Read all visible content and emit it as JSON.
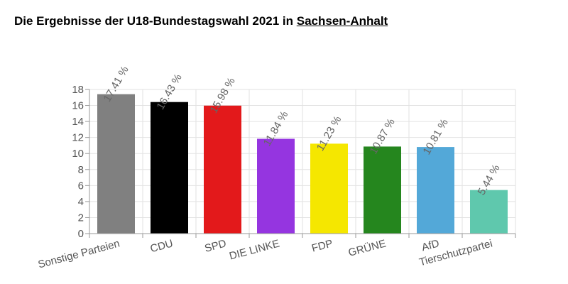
{
  "title": {
    "prefix": "Die Ergebnisse der U18-Bundestagswahl 2021 in ",
    "region": "Sachsen-Anhalt"
  },
  "chart_data": {
    "type": "bar",
    "categories": [
      "Sonstige Parteien",
      "CDU",
      "SPD",
      "DIE LINKE",
      "FDP",
      "GRÜNE",
      "AfD",
      "Tierschutzpartei"
    ],
    "values": [
      17.41,
      16.43,
      15.98,
      11.84,
      11.23,
      10.87,
      10.81,
      5.44
    ],
    "value_labels": [
      "17.41 %",
      "16.43 %",
      "15.98 %",
      "11.84 %",
      "11.23 %",
      "10.87 %",
      "10.81 %",
      "5.44 %"
    ],
    "colors": [
      "#808080",
      "#000000",
      "#e3191b",
      "#9535e0",
      "#f5e700",
      "#25861e",
      "#53a8d8",
      "#5fc8ad"
    ],
    "ylim": [
      0,
      18
    ],
    "yticks": [
      0,
      2,
      4,
      6,
      8,
      10,
      12,
      14,
      16,
      18
    ],
    "grid": true,
    "xlabel": "",
    "ylabel": ""
  }
}
